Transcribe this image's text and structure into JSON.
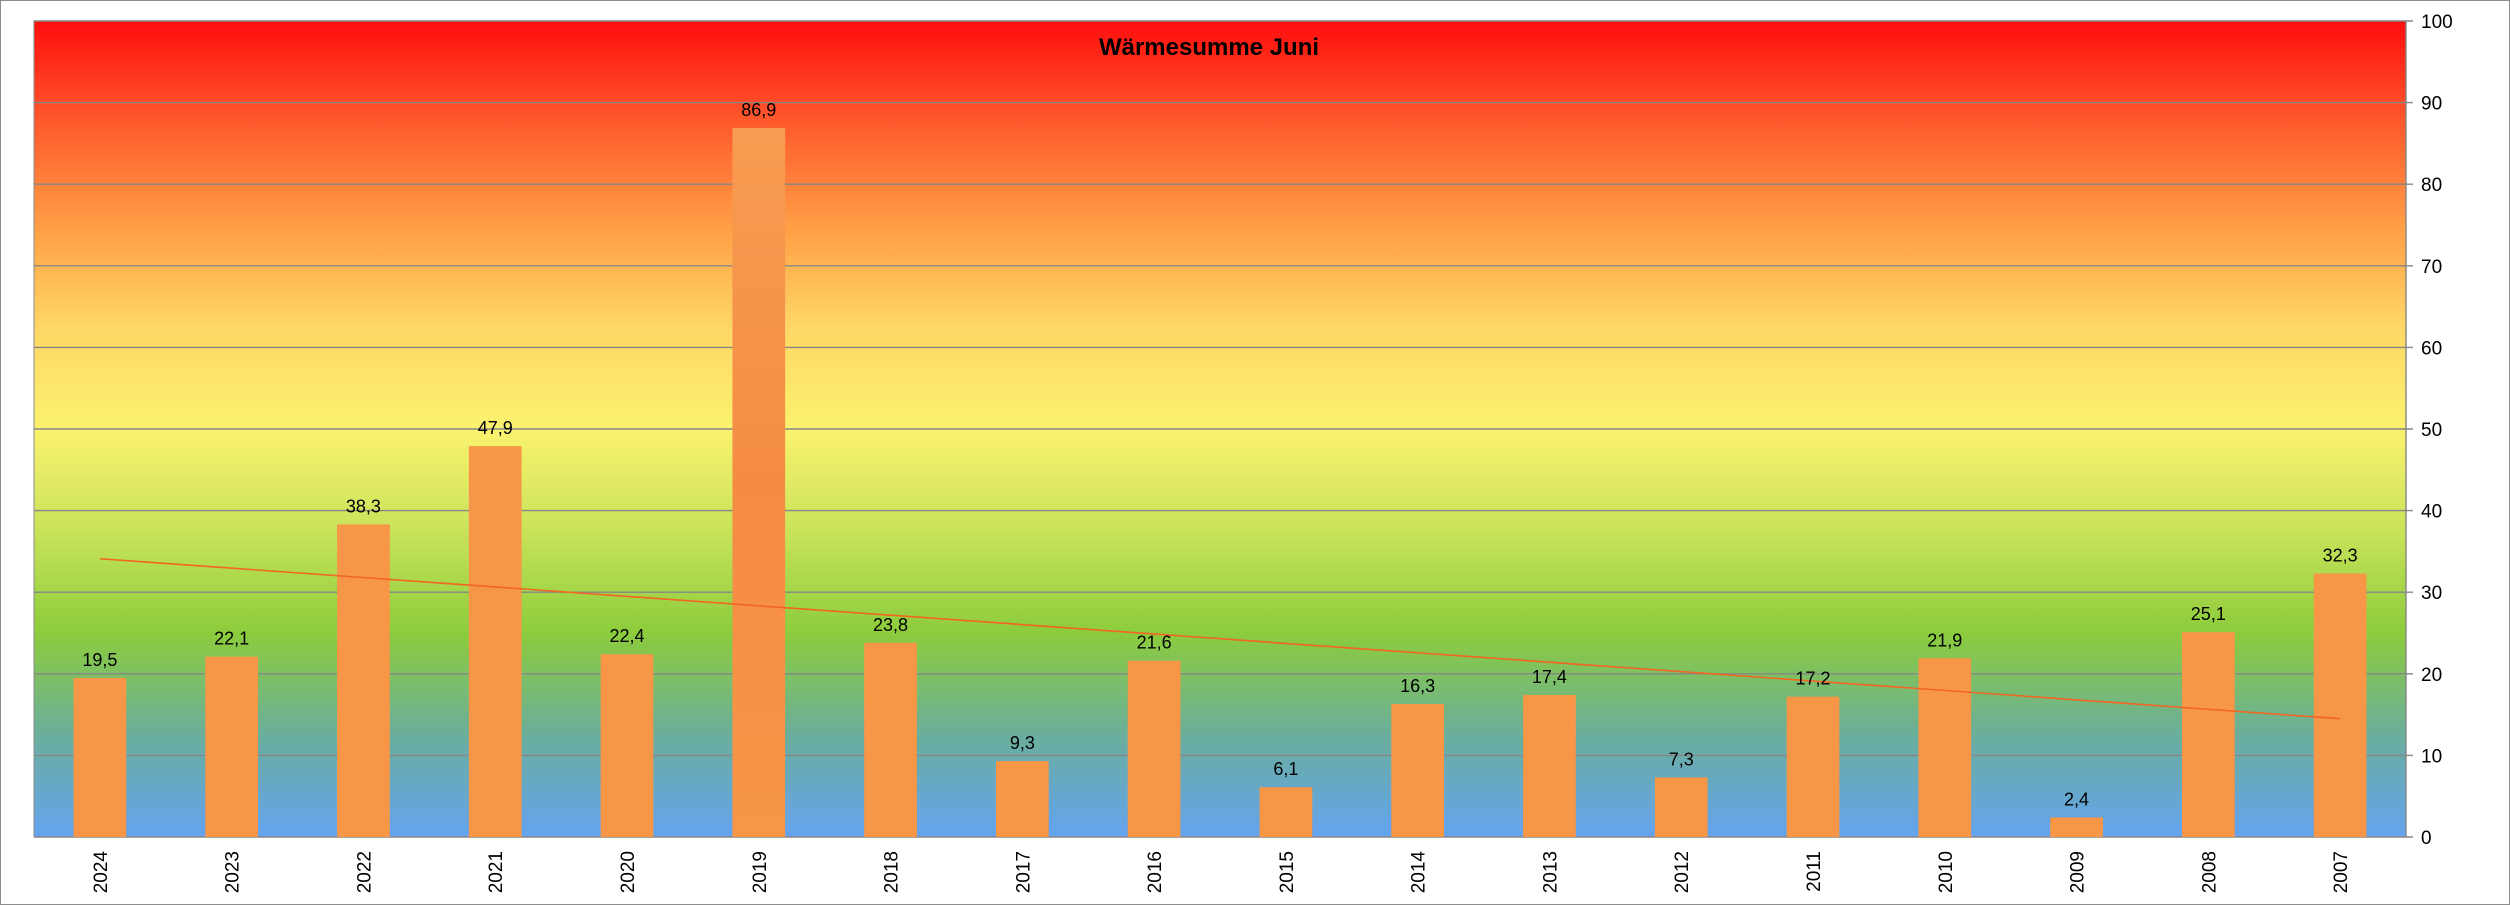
{
  "chart_data": {
    "type": "bar",
    "title": "Wärmesumme Juni",
    "xlabel": "",
    "ylabel": "",
    "categories": [
      "2024",
      "2023",
      "2022",
      "2021",
      "2020",
      "2019",
      "2018",
      "2017",
      "2016",
      "2015",
      "2014",
      "2013",
      "2012",
      "2011",
      "2010",
      "2009",
      "2008",
      "2007"
    ],
    "series": [
      {
        "values": [
          19.5,
          22.1,
          38.3,
          47.9,
          22.4,
          86.9,
          23.8,
          9.3,
          21.6,
          6.1,
          16.3,
          17.4,
          7.3,
          17.2,
          21.9,
          2.4,
          25.1,
          32.3
        ],
        "data_labels": [
          "19,5",
          "22,1",
          "38,3",
          "47,9",
          "22,4",
          "86,9",
          "23,8",
          "9,3",
          "21,6",
          "6,1",
          "16,3",
          "17,4",
          "7,3",
          "17,2",
          "21,9",
          "2,4",
          "25,1",
          "32,3"
        ],
        "color": "#f79646"
      }
    ],
    "trendline": {
      "type": "linear",
      "color": "#f26522",
      "start_value": 34.1,
      "end_value": 14.5
    },
    "ylim": [
      0,
      100
    ],
    "y_ticks": [
      0,
      10,
      20,
      30,
      40,
      50,
      60,
      70,
      80,
      90,
      100
    ],
    "y_axis_position": "right",
    "grid": true,
    "legend": "none",
    "background_gradient": [
      "#ff0d0d",
      "#ff5a2d",
      "#ff9d45",
      "#fed766",
      "#fbf26e",
      "#c9e35a",
      "#8ccc3c",
      "#6aae9c",
      "#64a3f0"
    ]
  }
}
